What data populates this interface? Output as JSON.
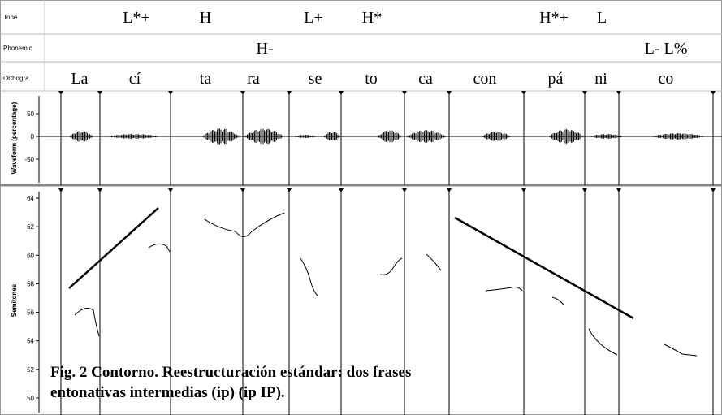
{
  "tiers": [
    {
      "name": "Tone",
      "labels": [
        "L*+",
        "H",
        "L+",
        "H*",
        "H*+",
        "L"
      ]
    },
    {
      "name": "Phonemic",
      "labels": [
        "H-",
        "L- L%"
      ]
    },
    {
      "name": "Orthogra.",
      "labels": [
        "La",
        "cí",
        "ta",
        "ra",
        "se",
        "to",
        "ca",
        "con",
        "pá",
        "ni",
        "co"
      ]
    }
  ],
  "waveform": {
    "axis_label": "Waveform (percentage)",
    "yticks": [
      50,
      0,
      -50
    ]
  },
  "pitch": {
    "axis_label": "Semitones",
    "yticks": [
      64,
      62,
      60,
      58,
      56,
      54,
      52,
      50
    ]
  },
  "caption": [
    "Fig. 2 Contorno. Reestructuración estándar: dos frases",
    "entonativas intermedias (ip) (ip IP)."
  ]
}
